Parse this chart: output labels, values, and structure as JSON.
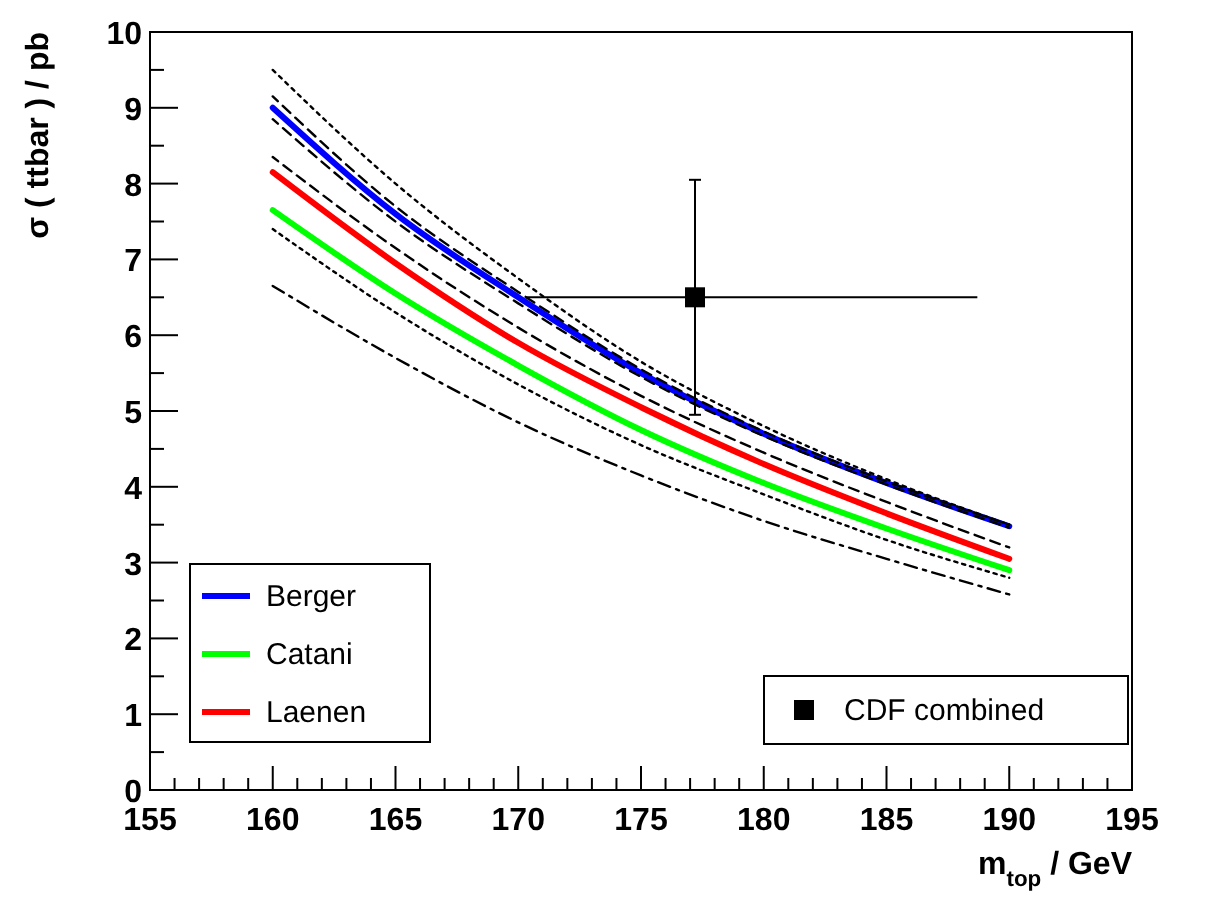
{
  "chart_data": {
    "type": "line",
    "xlabel": "m$_{top}$ / GeV",
    "ylabel": "σ ( ttbar ) / pb",
    "xlim": [
      155,
      195
    ],
    "ylim": [
      0,
      10
    ],
    "xticks": [
      155,
      {
        "value": 156,
        "label": null
      },
      {
        "value": 157,
        "label": null
      },
      {
        "value": 158,
        "label": null
      },
      {
        "value": 159,
        "label": null
      },
      160,
      {
        "value": 161,
        "label": null
      },
      {
        "value": 162,
        "label": null
      },
      {
        "value": 163,
        "label": null
      },
      {
        "value": 164,
        "label": null
      },
      165,
      {
        "value": 166,
        "label": null
      },
      {
        "value": 167,
        "label": null
      },
      {
        "value": 168,
        "label": null
      },
      {
        "value": 169,
        "label": null
      },
      170,
      {
        "value": 171,
        "label": null
      },
      {
        "value": 172,
        "label": null
      },
      {
        "value": 173,
        "label": null
      },
      {
        "value": 174,
        "label": null
      },
      175,
      {
        "value": 176,
        "label": null
      },
      {
        "value": 177,
        "label": null
      },
      {
        "value": 178,
        "label": null
      },
      {
        "value": 179,
        "label": null
      },
      180,
      {
        "value": 181,
        "label": null
      },
      {
        "value": 182,
        "label": null
      },
      {
        "value": 183,
        "label": null
      },
      {
        "value": 184,
        "label": null
      },
      185,
      {
        "value": 186,
        "label": null
      },
      {
        "value": 187,
        "label": null
      },
      {
        "value": 188,
        "label": null
      },
      {
        "value": 189,
        "label": null
      },
      190,
      {
        "value": 191,
        "label": null
      },
      {
        "value": 192,
        "label": null
      },
      {
        "value": 193,
        "label": null
      },
      {
        "value": 194,
        "label": null
      },
      195
    ],
    "yticks": [
      0,
      {
        "value": 0.5,
        "label": null
      },
      1,
      {
        "value": 1.5,
        "label": null
      },
      2,
      {
        "value": 2.5,
        "label": null
      },
      3,
      {
        "value": 3.5,
        "label": null
      },
      4,
      {
        "value": 4.5,
        "label": null
      },
      5,
      {
        "value": 5.5,
        "label": null
      },
      6,
      {
        "value": 6.5,
        "label": null
      },
      7,
      {
        "value": 7.5,
        "label": null
      },
      8,
      {
        "value": 8.5,
        "label": null
      },
      9,
      {
        "value": 9.5,
        "label": null
      },
      10
    ],
    "grid": false,
    "legend": "bottom left",
    "marker": "none",
    "x": [
      160,
      165,
      170,
      175,
      180,
      185,
      190
    ],
    "series": [
      {
        "color": "#000000",
        "line_style": "dotted",
        "values": [
          9.5,
          8.0,
          6.75,
          5.65,
          4.8,
          4.1,
          3.5
        ]
      },
      {
        "color": "#000000",
        "line_style": "dashed",
        "values": [
          9.15,
          7.7,
          6.57,
          5.55,
          4.73,
          4.07,
          3.5
        ]
      },
      {
        "color": "#000000",
        "line_style": "dashed",
        "values": [
          8.85,
          7.5,
          6.42,
          5.45,
          4.67,
          4.03,
          3.46
        ]
      },
      {
        "color": "#000000",
        "line_style": "dashed",
        "values": [
          8.35,
          7.15,
          6.1,
          5.2,
          4.45,
          3.8,
          3.2
        ]
      },
      {
        "color": "#000000",
        "line_style": "dotted",
        "values": [
          7.4,
          6.3,
          5.35,
          4.55,
          3.9,
          3.3,
          2.8
        ]
      },
      {
        "color": "#000000",
        "line_style": "dashdot",
        "values": [
          6.65,
          5.7,
          4.85,
          4.15,
          3.55,
          3.05,
          2.58
        ]
      },
      {
        "name": "Berger",
        "color": "#0000ff",
        "line_style": "solid",
        "values": [
          9.0,
          7.6,
          6.5,
          5.5,
          4.7,
          4.05,
          3.48
        ]
      },
      {
        "name": "Catani",
        "color": "#00ff00",
        "line_style": "solid",
        "values": [
          7.65,
          6.55,
          5.6,
          4.75,
          4.05,
          3.45,
          2.9
        ]
      },
      {
        "name": "Laenen",
        "color": "#ff0000",
        "line_style": "solid",
        "values": [
          8.15,
          6.95,
          5.9,
          5.05,
          4.3,
          3.65,
          3.05
        ]
      },
      {
        "name": "CDF combined",
        "type": "scatter",
        "color": "#000000",
        "marker": "square",
        "x": [
          177.2
        ],
        "values": [
          6.5
        ],
        "errors": [
          [
            4.95,
            8.05
          ]
        ],
        "xerrors": [
          [
            170.3,
            188.7
          ]
        ]
      }
    ]
  }
}
